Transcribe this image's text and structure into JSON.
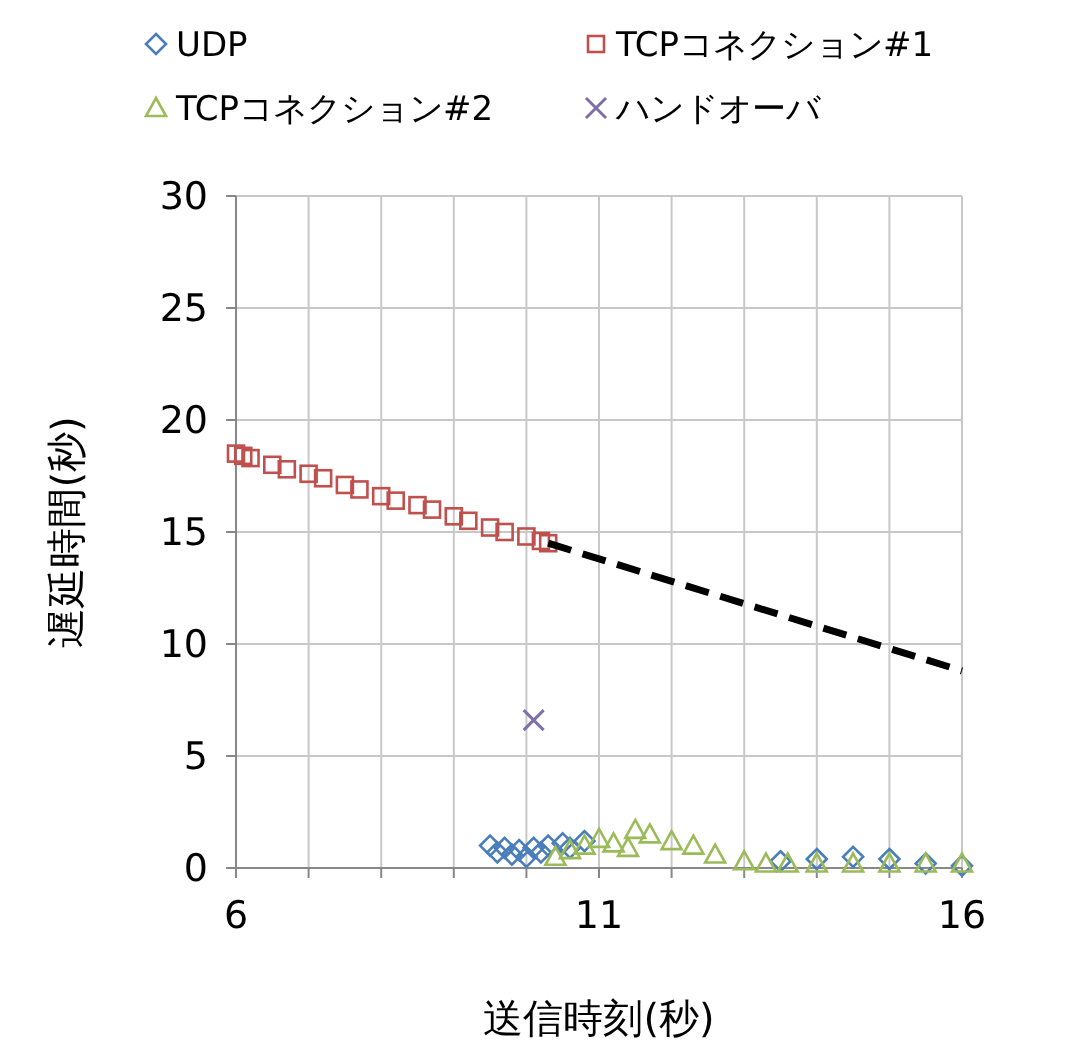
{
  "chart_data": {
    "type": "scatter",
    "xlabel": "送信時刻(秒)",
    "ylabel": "遅延時間(秒)",
    "xlim": [
      6,
      16
    ],
    "ylim": [
      0,
      30
    ],
    "xticks": [
      6,
      {
        "value": 7,
        "label": null
      },
      {
        "value": 8,
        "label": null
      },
      {
        "value": 9,
        "label": null
      },
      {
        "value": 10,
        "label": null
      },
      11,
      {
        "value": 12,
        "label": null
      },
      {
        "value": 13,
        "label": null
      },
      {
        "value": 14,
        "label": null
      },
      {
        "value": 15,
        "label": null
      },
      16
    ],
    "yticks": [
      0,
      5,
      10,
      15,
      20,
      25,
      30
    ],
    "grid": true,
    "legend": "top",
    "series": [
      {
        "name": "UDP",
        "color": "#4a7ebb",
        "marker": "diamond",
        "x": [
          9.5,
          9.6,
          9.7,
          9.8,
          9.9,
          10.0,
          10.1,
          10.2,
          10.3,
          10.5,
          10.6,
          10.8,
          13.5,
          14.0,
          14.5,
          15.0,
          15.5,
          16.0
        ],
        "values": [
          1.0,
          0.7,
          0.9,
          0.6,
          0.8,
          0.5,
          0.9,
          0.7,
          1.0,
          1.1,
          0.9,
          1.2,
          0.3,
          0.4,
          0.5,
          0.4,
          0.2,
          0.1
        ]
      },
      {
        "name": "TCPコネクション#1",
        "color": "#c0504d",
        "marker": "square",
        "x": [
          6.0,
          6.1,
          6.2,
          6.5,
          6.7,
          7.0,
          7.2,
          7.5,
          7.7,
          8.0,
          8.2,
          8.5,
          8.7,
          9.0,
          9.2,
          9.5,
          9.7,
          10.0,
          10.2,
          10.3
        ],
        "values": [
          18.5,
          18.4,
          18.3,
          18.0,
          17.8,
          17.6,
          17.4,
          17.1,
          16.9,
          16.6,
          16.4,
          16.2,
          16.0,
          15.7,
          15.5,
          15.2,
          15.0,
          14.8,
          14.6,
          14.5
        ]
      },
      {
        "name": "TCPコネクション#2",
        "color": "#9bbb59",
        "marker": "triangle",
        "x": [
          10.4,
          10.6,
          10.8,
          11.0,
          11.2,
          11.4,
          11.5,
          11.7,
          12.0,
          12.3,
          12.6,
          13.0,
          13.3,
          13.6,
          14.0,
          14.5,
          15.0,
          15.5,
          16.0
        ],
        "values": [
          0.5,
          0.8,
          1.0,
          1.3,
          1.1,
          0.9,
          1.7,
          1.5,
          1.2,
          1.0,
          0.6,
          0.3,
          0.2,
          0.2,
          0.2,
          0.2,
          0.2,
          0.2,
          0.2
        ]
      },
      {
        "name": "ハンドオーバ",
        "color": "#7f6fa8",
        "marker": "cross",
        "x": [
          10.1
        ],
        "values": [
          6.6
        ]
      },
      {
        "type": "line",
        "color": "#000000",
        "line_style": "dashed",
        "marker": "none",
        "x": [
          10.3,
          16
        ],
        "values": [
          14.5,
          8.8
        ]
      }
    ]
  }
}
